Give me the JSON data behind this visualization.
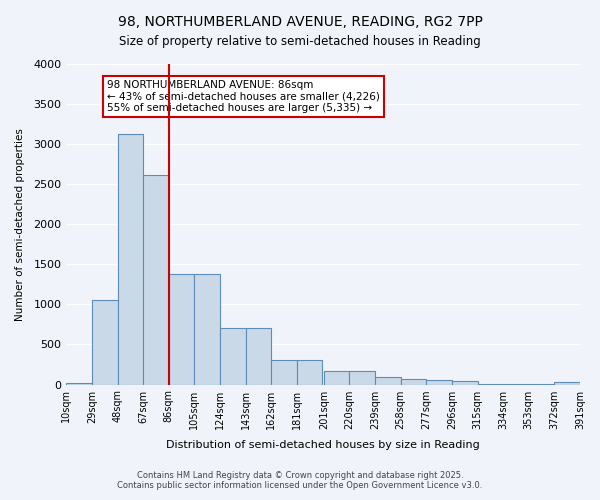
{
  "title_line1": "98, NORTHUMBERLAND AVENUE, READING, RG2 7PP",
  "title_line2": "Size of property relative to semi-detached houses in Reading",
  "xlabel": "Distribution of semi-detached houses by size in Reading",
  "ylabel": "Number of semi-detached properties",
  "annotation_title": "98 NORTHUMBERLAND AVENUE: 86sqm",
  "annotation_line2": "← 43% of semi-detached houses are smaller (4,226)",
  "annotation_line3": "55% of semi-detached houses are larger (5,335) →",
  "footer_line1": "Contains HM Land Registry data © Crown copyright and database right 2025.",
  "footer_line2": "Contains public sector information licensed under the Open Government Licence v3.0.",
  "property_size": 86,
  "bin_edges": [
    10,
    29,
    48,
    67,
    86,
    105,
    124,
    143,
    162,
    181,
    201,
    220,
    239,
    258,
    277,
    296,
    315,
    334,
    353,
    372,
    391
  ],
  "bin_labels": [
    "10sqm",
    "29sqm",
    "48sqm",
    "67sqm",
    "86sqm",
    "105sqm",
    "124sqm",
    "143sqm",
    "162sqm",
    "181sqm",
    "201sqm",
    "220sqm",
    "239sqm",
    "258sqm",
    "277sqm",
    "296sqm",
    "315sqm",
    "334sqm",
    "353sqm",
    "372sqm",
    "391sqm"
  ],
  "counts": [
    20,
    1050,
    3130,
    2610,
    1380,
    1380,
    700,
    700,
    300,
    300,
    175,
    175,
    100,
    70,
    55,
    40,
    5,
    5,
    5,
    30
  ],
  "bar_color": "#c9d9e8",
  "bar_edge_color": "#5b8db8",
  "red_line_color": "#cc0000",
  "background_color": "#f0f4fa",
  "grid_color": "#ffffff",
  "ylim": [
    0,
    4000
  ],
  "yticks": [
    0,
    500,
    1000,
    1500,
    2000,
    2500,
    3000,
    3500,
    4000
  ]
}
